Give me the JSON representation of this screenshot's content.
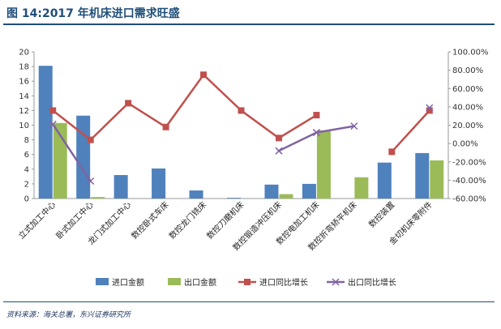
{
  "figure": {
    "title": "图 14:2017 年机床进口需求旺盛",
    "source": "资料来源：海关总署，东兴证券研究所"
  },
  "chart_data": {
    "type": "bar",
    "categories": [
      "立式加工中心",
      "卧式加工中心",
      "龙门式加工中心",
      "数控卧式车床",
      "数控龙门铣床",
      "数控刀磨机床",
      "数控锻造冲压机床",
      "数控电加工机床",
      "数控折弯矫平机床",
      "数控装置",
      "金切机床零附件"
    ],
    "series": [
      {
        "name": "进口金额",
        "kind": "bar",
        "axis": "left",
        "color": "#4f81bd",
        "values": [
          18.1,
          11.3,
          3.2,
          4.1,
          1.1,
          0.1,
          1.9,
          2.0,
          null,
          4.9,
          6.2
        ]
      },
      {
        "name": "出口金额",
        "kind": "bar",
        "axis": "left",
        "color": "#9bbb59",
        "values": [
          10.3,
          0.2,
          null,
          null,
          null,
          null,
          0.6,
          9.3,
          2.9,
          null,
          5.2
        ]
      },
      {
        "name": "进口同比增长",
        "kind": "line",
        "axis": "right",
        "color": "#c0504d",
        "marker": "square",
        "values": [
          0.36,
          0.04,
          0.44,
          0.18,
          0.75,
          0.36,
          0.06,
          0.31,
          null,
          -0.09,
          0.36
        ]
      },
      {
        "name": "出口同比增长",
        "kind": "line",
        "axis": "right",
        "color": "#8064a2",
        "marker": "x",
        "values": [
          0.21,
          -0.41,
          null,
          null,
          null,
          null,
          -0.08,
          0.12,
          0.19,
          null,
          0.39
        ]
      }
    ],
    "y_left": {
      "min": 0,
      "max": 20,
      "step": 2,
      "ticks": [
        "0",
        "2",
        "4",
        "6",
        "8",
        "10",
        "12",
        "14",
        "16",
        "18",
        "20"
      ]
    },
    "y_right": {
      "min": -0.6,
      "max": 1.0,
      "step": 0.2,
      "ticks": [
        "-60.00%",
        "-40.00%",
        "-20.00%",
        "0.00%",
        "20.00%",
        "40.00%",
        "60.00%",
        "80.00%",
        "100.00%"
      ]
    },
    "legend_position": "bottom",
    "grid": false
  }
}
